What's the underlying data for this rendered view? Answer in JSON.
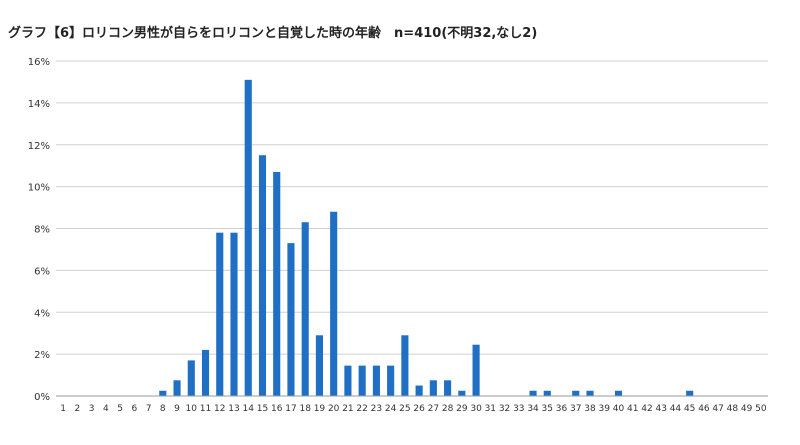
{
  "chart_data": {
    "type": "bar",
    "title": "グラフ【6】ロリコン男性が自らをロリコンと自覚した時の年齢　n=410(不明32,なし2)",
    "xlabel": "",
    "ylabel": "",
    "ylim": [
      0,
      16
    ],
    "y_tick_step": 2,
    "y_tick_format": "{v}%",
    "grid": true,
    "legend": "none",
    "categories": [
      "1",
      "2",
      "3",
      "4",
      "5",
      "6",
      "7",
      "8",
      "9",
      "10",
      "11",
      "12",
      "13",
      "14",
      "15",
      "16",
      "17",
      "18",
      "19",
      "20",
      "21",
      "22",
      "23",
      "24",
      "25",
      "26",
      "27",
      "28",
      "29",
      "30",
      "31",
      "32",
      "33",
      "34",
      "35",
      "36",
      "37",
      "38",
      "39",
      "40",
      "41",
      "42",
      "43",
      "44",
      "45",
      "46",
      "47",
      "48",
      "49",
      "50"
    ],
    "values": [
      0,
      0,
      0,
      0,
      0,
      0,
      0,
      0.25,
      0.75,
      1.7,
      2.2,
      7.8,
      7.8,
      15.1,
      11.5,
      10.7,
      7.3,
      8.3,
      2.9,
      8.8,
      1.45,
      1.45,
      1.45,
      1.45,
      2.9,
      0.5,
      0.75,
      0.75,
      0.25,
      2.45,
      0,
      0,
      0,
      0.25,
      0.25,
      0,
      0.25,
      0.25,
      0,
      0.25,
      0,
      0,
      0,
      0,
      0.25,
      0,
      0,
      0,
      0,
      0
    ]
  },
  "colors": {
    "bar": "#1f6fc5",
    "grid": "#d0d0d0",
    "axis": "#999999"
  }
}
